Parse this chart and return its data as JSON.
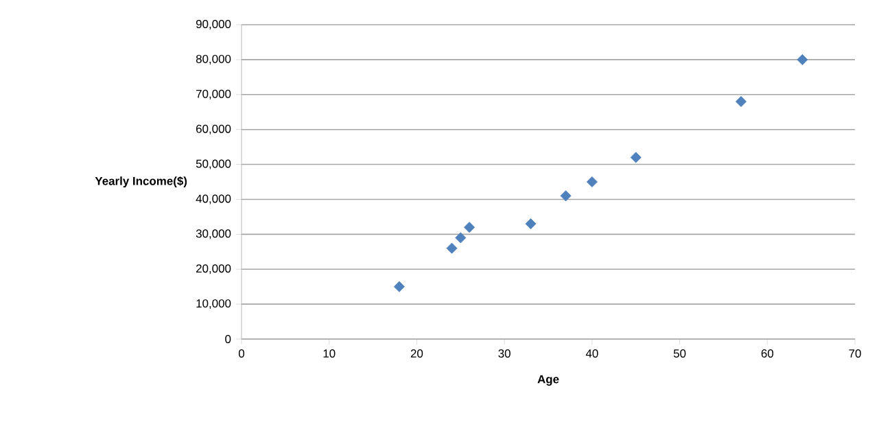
{
  "chart_data": {
    "type": "scatter",
    "xlabel": "Age",
    "ylabel": "Yearly Income($)",
    "x": [
      18,
      24,
      25,
      26,
      33,
      37,
      40,
      45,
      57,
      64
    ],
    "series": [
      {
        "color": "#4f81bd",
        "values": [
          15000,
          26000,
          29000,
          32000,
          33000,
          41000,
          45000,
          52000,
          68000,
          80000
        ]
      }
    ],
    "xlim": [
      0,
      70
    ],
    "xticks": [
      0,
      10,
      20,
      30,
      40,
      50,
      60,
      70
    ],
    "ylim": [
      0,
      90000
    ],
    "yticks": [
      {
        "value": 0,
        "label": "0"
      },
      {
        "value": 10000,
        "label": "10,000"
      },
      {
        "value": 20000,
        "label": "20,000"
      },
      {
        "value": 30000,
        "label": "30,000"
      },
      {
        "value": 40000,
        "label": "40,000"
      },
      {
        "value": 50000,
        "label": "50,000"
      },
      {
        "value": 60000,
        "label": "60,000"
      },
      {
        "value": 70000,
        "label": "70,000"
      },
      {
        "value": 80000,
        "label": "80,000"
      },
      {
        "value": 90000,
        "label": "90,000"
      }
    ],
    "grid": "y",
    "marker": "diamond"
  }
}
